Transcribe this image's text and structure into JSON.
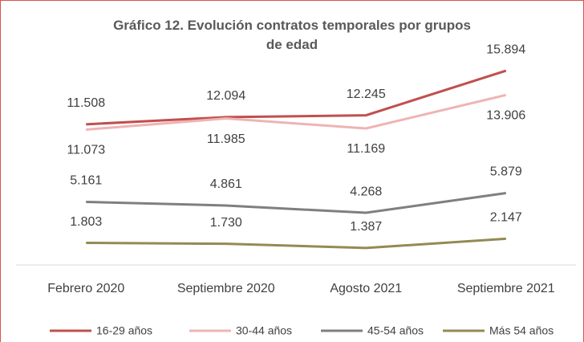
{
  "chart_data": {
    "type": "line",
    "title": "Gráfico 12. Evolución contratos temporales por grupos de edad",
    "categories": [
      "Febrero 2020",
      "Septiembre 2020",
      "Agosto 2021",
      "Septiembre 2021"
    ],
    "ylim": [
      0,
      18000
    ],
    "legend": "bottom",
    "series": [
      {
        "name": "16-29 años",
        "color": "#c0504d",
        "values": [
          11508,
          12094,
          12245,
          15894
        ],
        "value_labels": [
          "11.508",
          "12.094",
          "12.245",
          "15.894"
        ]
      },
      {
        "name": "30-44 años",
        "color": "#eeb4b3",
        "values": [
          11073,
          11985,
          11169,
          13906
        ],
        "value_labels": [
          "11.073",
          "11.985",
          "11.169",
          "13.906"
        ]
      },
      {
        "name": "45-54 años",
        "color": "#7f7f7f",
        "values": [
          5161,
          4861,
          4268,
          5879
        ],
        "value_labels": [
          "5.161",
          "4.861",
          "4.268",
          "5.879"
        ]
      },
      {
        "name": "Más 54 años",
        "color": "#948a54",
        "values": [
          1803,
          1730,
          1387,
          2147
        ],
        "value_labels": [
          "1.803",
          "1.730",
          "1.387",
          "2.147"
        ]
      }
    ]
  }
}
